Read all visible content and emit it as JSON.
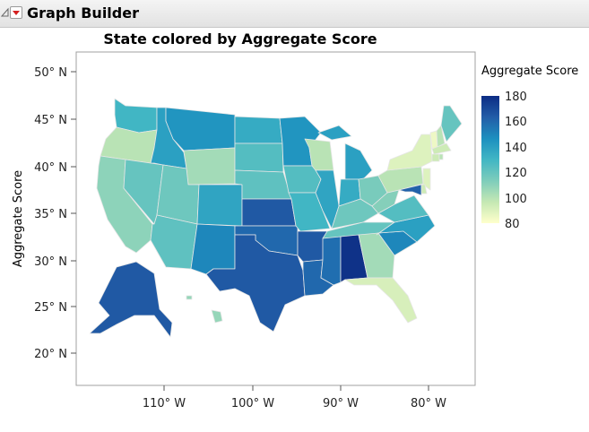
{
  "app": {
    "title": "Graph Builder"
  },
  "chart_data": {
    "type": "choropleth-map",
    "title": "State colored by Aggregate Score",
    "ylabel": "Aggregate Score",
    "xlabel": "",
    "y_ticks": [
      "50° N",
      "45° N",
      "40° N",
      "35° N",
      "30° N",
      "25° N",
      "20° N"
    ],
    "x_ticks": [
      "110° W",
      "100° W",
      "90° W",
      "80° W"
    ],
    "legend": {
      "title": "Aggregate Score",
      "min": 80,
      "max": 180,
      "ticks": [
        "180",
        "160",
        "140",
        "120",
        "100",
        "80"
      ],
      "placement": "right",
      "colors": [
        "#ffffcc",
        "#c7e9b4",
        "#7fcdbb",
        "#41b6c4",
        "#1d91c0",
        "#225ea8",
        "#0c2c84"
      ]
    },
    "regions": [
      {
        "state": "Washington",
        "value": 130
      },
      {
        "state": "Oregon",
        "value": 100
      },
      {
        "state": "California",
        "value": 110
      },
      {
        "state": "Nevada",
        "value": 120
      },
      {
        "state": "Idaho",
        "value": 140
      },
      {
        "state": "Montana",
        "value": 145
      },
      {
        "state": "Wyoming",
        "value": 105
      },
      {
        "state": "Utah",
        "value": 118
      },
      {
        "state": "Arizona",
        "value": 122
      },
      {
        "state": "Colorado",
        "value": 138
      },
      {
        "state": "New Mexico",
        "value": 150
      },
      {
        "state": "North Dakota",
        "value": 135
      },
      {
        "state": "South Dakota",
        "value": 125
      },
      {
        "state": "Nebraska",
        "value": 122
      },
      {
        "state": "Kansas",
        "value": 165
      },
      {
        "state": "Oklahoma",
        "value": 160
      },
      {
        "state": "Texas",
        "value": 165
      },
      {
        "state": "Minnesota",
        "value": 145
      },
      {
        "state": "Iowa",
        "value": 125
      },
      {
        "state": "Missouri",
        "value": 130
      },
      {
        "state": "Arkansas",
        "value": 165
      },
      {
        "state": "Louisiana",
        "value": 160
      },
      {
        "state": "Wisconsin",
        "value": 100
      },
      {
        "state": "Illinois",
        "value": 138
      },
      {
        "state": "Michigan",
        "value": 140
      },
      {
        "state": "Indiana",
        "value": 135
      },
      {
        "state": "Ohio",
        "value": 115
      },
      {
        "state": "Kentucky",
        "value": 118
      },
      {
        "state": "Tennessee",
        "value": 120
      },
      {
        "state": "Mississippi",
        "value": 158
      },
      {
        "state": "Alabama",
        "value": 178
      },
      {
        "state": "Georgia",
        "value": 105
      },
      {
        "state": "Florida",
        "value": 92
      },
      {
        "state": "South Carolina",
        "value": 150
      },
      {
        "state": "North Carolina",
        "value": 140
      },
      {
        "state": "Virginia",
        "value": 125
      },
      {
        "state": "West Virginia",
        "value": 112
      },
      {
        "state": "Pennsylvania",
        "value": 100
      },
      {
        "state": "New York",
        "value": 90
      },
      {
        "state": "Vermont",
        "value": 85
      },
      {
        "state": "New Hampshire",
        "value": 100
      },
      {
        "state": "Maine",
        "value": 120
      },
      {
        "state": "Massachusetts",
        "value": 95
      },
      {
        "state": "Connecticut",
        "value": 95
      },
      {
        "state": "Rhode Island",
        "value": 100
      },
      {
        "state": "New Jersey",
        "value": 90
      },
      {
        "state": "Delaware",
        "value": 95
      },
      {
        "state": "Maryland",
        "value": 162
      },
      {
        "state": "Alaska",
        "value": 165
      },
      {
        "state": "Hawaii",
        "value": 108
      }
    ]
  }
}
